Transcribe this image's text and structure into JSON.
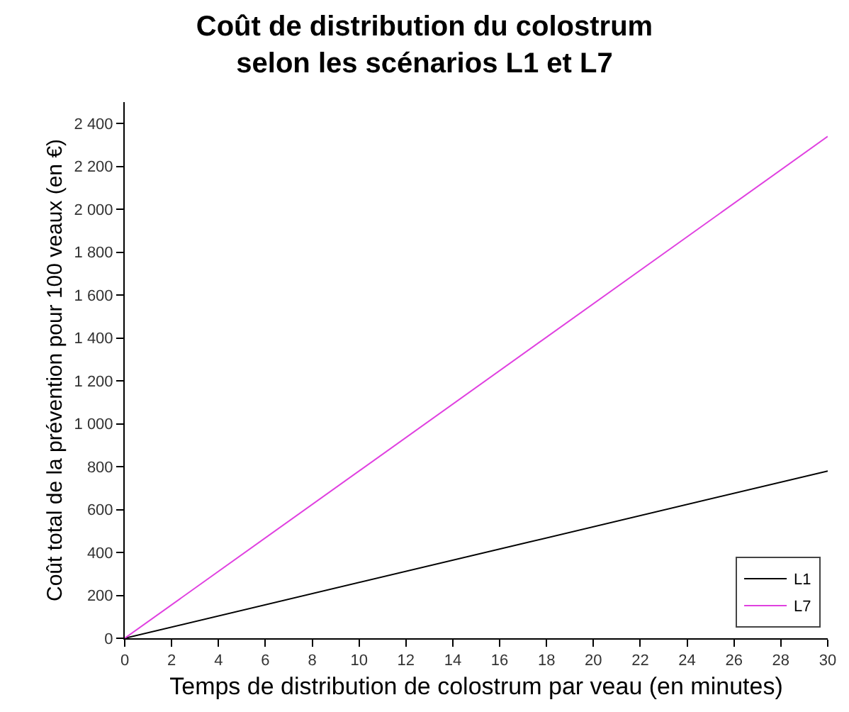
{
  "chart_data": {
    "type": "line",
    "title": "Coût de distribution du colostrum\nselon les scénarios L1 et L7",
    "xlabel": "Temps de distribution de colostrum par veau (en minutes)",
    "ylabel": "Coût total de la prévention pour 100 veaux (en €)",
    "x": [
      0,
      30
    ],
    "series": [
      {
        "name": "L1",
        "color": "#000000",
        "values": [
          0,
          780
        ]
      },
      {
        "name": "L7",
        "color": "#e040e0",
        "values": [
          0,
          2340
        ]
      }
    ],
    "xlim": [
      0,
      30
    ],
    "xticks": [
      0,
      2,
      4,
      6,
      8,
      10,
      12,
      14,
      16,
      18,
      20,
      22,
      24,
      26,
      28,
      30
    ],
    "ylim": [
      0,
      2500
    ],
    "yticks": [
      0,
      200,
      400,
      600,
      800,
      {
        "value": 1000,
        "label": "1 000"
      },
      {
        "value": 1200,
        "label": "1 200"
      },
      {
        "value": 1400,
        "label": "1 400"
      },
      {
        "value": 1600,
        "label": "1 600"
      },
      {
        "value": 1800,
        "label": "1 800"
      },
      {
        "value": 2000,
        "label": "2 000"
      },
      {
        "value": 2200,
        "label": "2 200"
      },
      {
        "value": 2400,
        "label": "2 400"
      }
    ],
    "legend": "bottom right",
    "marker": "none",
    "line_style": "solid"
  }
}
